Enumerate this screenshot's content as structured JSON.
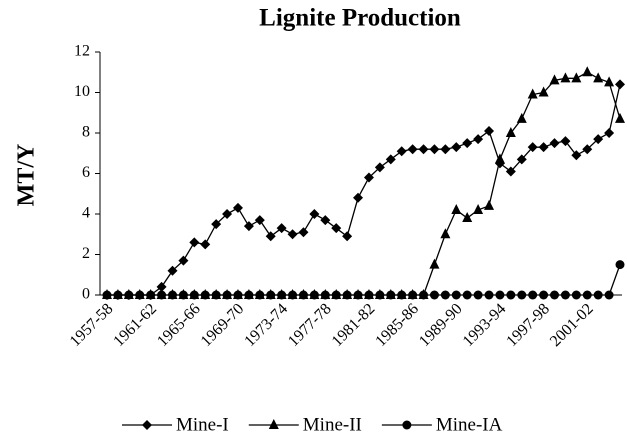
{
  "chart_data": {
    "type": "line",
    "title": "Lignite  Production",
    "y_label": "MT/Y",
    "categories": [
      "1957-58",
      null,
      null,
      null,
      "1961-62",
      null,
      null,
      null,
      "1965-66",
      null,
      null,
      null,
      "1969-70",
      null,
      null,
      null,
      "1973-74",
      null,
      null,
      null,
      "1977-78",
      null,
      null,
      null,
      "1981-82",
      null,
      null,
      null,
      "1985-86",
      null,
      null,
      null,
      "1989-90",
      null,
      null,
      null,
      "1993-94",
      null,
      null,
      null,
      "1997-98",
      null,
      null,
      null,
      "2001-02",
      null,
      null,
      null
    ],
    "series": [
      {
        "name": "Mine-I",
        "color": "#000000",
        "marker": "diamond",
        "values": [
          0,
          0,
          0,
          0,
          0,
          0.4,
          1.2,
          1.7,
          2.6,
          2.5,
          3.5,
          4.0,
          4.3,
          3.4,
          3.7,
          2.9,
          3.3,
          3.0,
          3.1,
          4.0,
          3.7,
          3.3,
          2.9,
          4.8,
          5.8,
          6.3,
          6.7,
          7.1,
          7.2,
          7.2,
          7.2,
          7.2,
          7.3,
          7.5,
          7.7,
          8.1,
          6.5,
          6.1,
          6.7,
          7.3,
          7.3,
          7.5,
          7.6,
          6.9,
          7.2,
          7.7,
          8.0,
          10.4
        ]
      },
      {
        "name": "Mine-II",
        "color": "#000000",
        "marker": "triangle",
        "values": [
          0,
          0,
          0,
          0,
          0,
          0,
          0,
          0,
          0,
          0,
          0,
          0,
          0,
          0,
          0,
          0,
          0,
          0,
          0,
          0,
          0,
          0,
          0,
          0,
          0,
          0,
          0,
          0,
          0,
          0,
          1.5,
          3.0,
          4.2,
          3.8,
          4.2,
          4.4,
          6.7,
          8.0,
          8.7,
          9.9,
          10.0,
          10.6,
          10.7,
          10.7,
          11.0,
          10.7,
          10.5,
          8.7
        ]
      },
      {
        "name": "Mine-IA",
        "color": "#000000",
        "marker": "circle",
        "values": [
          0,
          0,
          0,
          0,
          0,
          0,
          0,
          0,
          0,
          0,
          0,
          0,
          0,
          0,
          0,
          0,
          0,
          0,
          0,
          0,
          0,
          0,
          0,
          0,
          0,
          0,
          0,
          0,
          0,
          0,
          0,
          0,
          0,
          0,
          0,
          0,
          0,
          0,
          0,
          0,
          0,
          0,
          0,
          0,
          0,
          0,
          0,
          1.5
        ]
      }
    ],
    "ylim": [
      0,
      12
    ],
    "yticks": [
      0,
      2,
      4,
      6,
      8,
      10,
      12
    ],
    "legend": "bottom"
  }
}
